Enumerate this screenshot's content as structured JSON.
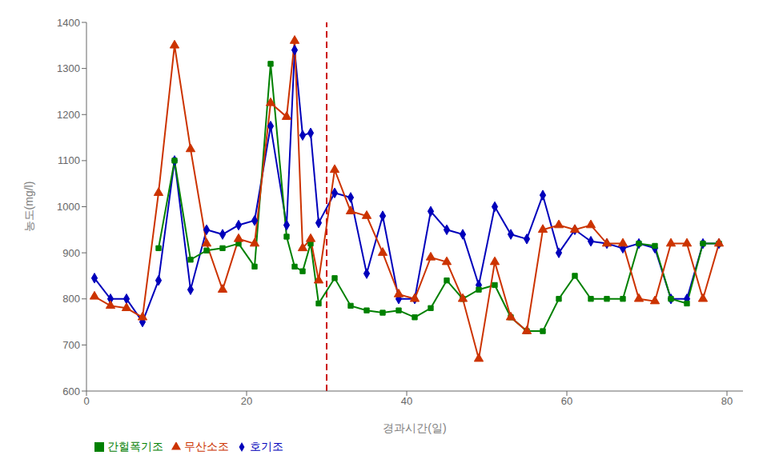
{
  "chart_data": {
    "type": "line",
    "xlabel": "경과시간(일)",
    "ylabel": "농도(mg/l)",
    "xlim": [
      0,
      82
    ],
    "ylim": [
      600,
      1400
    ],
    "xticks": [
      0,
      20,
      40,
      60,
      80
    ],
    "yticks": [
      600,
      700,
      800,
      900,
      1000,
      1100,
      1200,
      1300,
      1400
    ],
    "grid": false,
    "legend": "lower left",
    "vlines": [
      {
        "x": 30,
        "color": "#cc0000",
        "line_style": "dashed"
      }
    ],
    "series": [
      {
        "name": "호기조",
        "color": "#0000bb",
        "marker": "diamond",
        "x": [
          1,
          3,
          5,
          7,
          9,
          11,
          13,
          15,
          17,
          19,
          21,
          23,
          25,
          26,
          27,
          28,
          29,
          31,
          33,
          35,
          37,
          39,
          41,
          43,
          45,
          47,
          49,
          51,
          53,
          55,
          57,
          59,
          61,
          63,
          65,
          67,
          69,
          71,
          73,
          75,
          77,
          79
        ],
        "values": [
          845,
          800,
          800,
          750,
          840,
          1100,
          820,
          950,
          940,
          960,
          970,
          1175,
          960,
          1340,
          1155,
          1160,
          965,
          1030,
          1020,
          855,
          980,
          800,
          800,
          990,
          950,
          940,
          830,
          1000,
          940,
          930,
          1025,
          900,
          950,
          925,
          920,
          910,
          920,
          910,
          800,
          800,
          920,
          920
        ]
      },
      {
        "name": "간헐폭기조",
        "color": "#008000",
        "marker": "square",
        "x": [
          9,
          11,
          13,
          15,
          17,
          19,
          21,
          23,
          25,
          26,
          27,
          28,
          29,
          31,
          33,
          35,
          37,
          39,
          41,
          43,
          45,
          47,
          49,
          51,
          53,
          55,
          57,
          59,
          61,
          63,
          65,
          67,
          69,
          71,
          73,
          75,
          77,
          79
        ],
        "values": [
          910,
          1100,
          885,
          905,
          910,
          920,
          870,
          1310,
          935,
          870,
          860,
          920,
          790,
          845,
          785,
          775,
          770,
          775,
          760,
          780,
          840,
          800,
          820,
          830,
          760,
          730,
          730,
          800,
          850,
          800,
          800,
          800,
          920,
          915,
          800,
          790,
          920,
          920
        ]
      },
      {
        "name": "무산소조",
        "color": "#cc3300",
        "marker": "triangle",
        "x": [
          1,
          3,
          5,
          7,
          9,
          11,
          13,
          15,
          17,
          19,
          21,
          23,
          25,
          26,
          27,
          28,
          29,
          31,
          33,
          35,
          37,
          39,
          41,
          43,
          45,
          47,
          49,
          51,
          53,
          55,
          57,
          59,
          61,
          63,
          65,
          67,
          69,
          71,
          73,
          75,
          77,
          79
        ],
        "values": [
          805,
          785,
          780,
          760,
          1030,
          1350,
          1125,
          920,
          820,
          930,
          920,
          1225,
          1195,
          1360,
          910,
          930,
          840,
          1080,
          990,
          980,
          900,
          810,
          800,
          890,
          880,
          800,
          670,
          880,
          760,
          730,
          950,
          960,
          950,
          960,
          920,
          920,
          800,
          795,
          920,
          920,
          800,
          920
        ]
      }
    ]
  }
}
